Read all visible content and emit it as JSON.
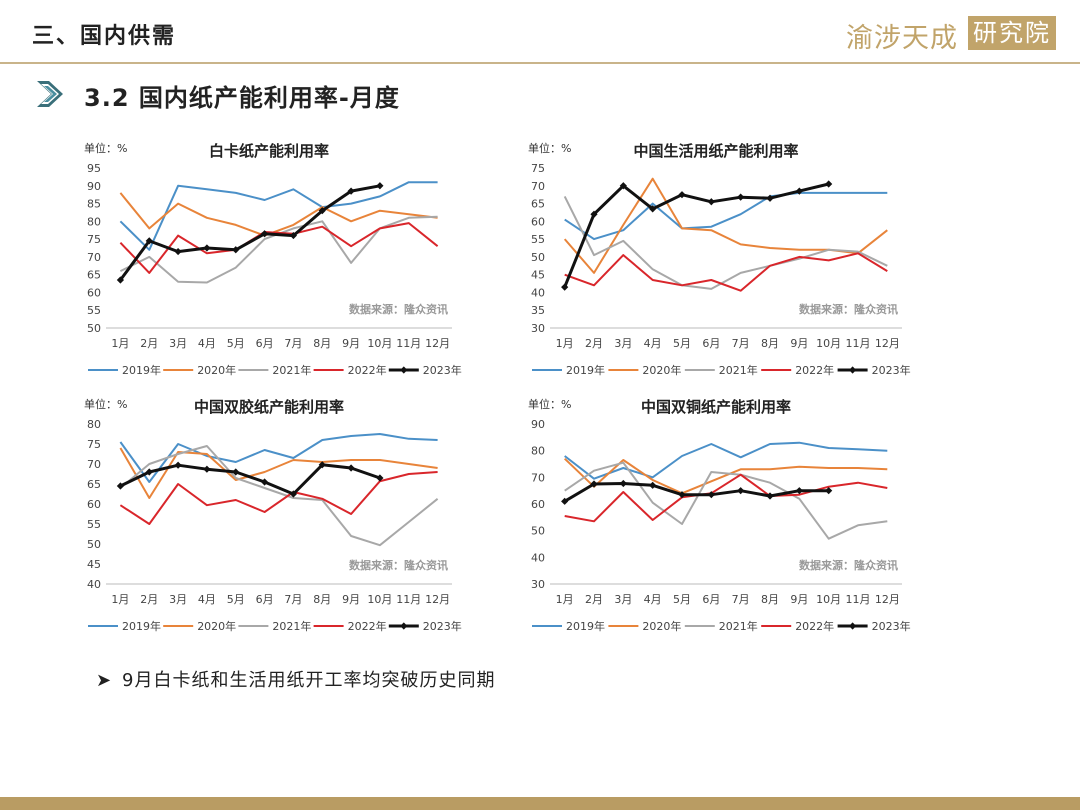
{
  "header": {
    "title": "三、国内供需"
  },
  "logo": {
    "text": "渝涉天成",
    "box_text": "研究院",
    "color": "#c1a46a"
  },
  "section": {
    "title": "3.2 国内纸产能利用率-月度"
  },
  "bullet": {
    "text": "9月白卡纸和生活用纸开工率均突破历史同期"
  },
  "series_colors": {
    "2019年": "#4b90c8",
    "2020年": "#e8843a",
    "2021年": "#a8a8a8",
    "2022年": "#d9262b",
    "2023年": "#111111"
  },
  "chart_data": [
    {
      "type": "line",
      "title": "白卡纸产能利用率",
      "unit": "单位：%",
      "source": "数据来源：隆众资讯",
      "categories": [
        "1月",
        "2月",
        "3月",
        "4月",
        "5月",
        "6月",
        "7月",
        "8月",
        "9月",
        "10月",
        "11月",
        "12月"
      ],
      "ylim": [
        50,
        95
      ],
      "yticks": [
        50,
        55,
        60,
        65,
        70,
        75,
        80,
        85,
        90,
        95
      ],
      "series": [
        {
          "name": "2019年",
          "values": [
            80,
            72,
            90,
            89,
            88,
            86,
            89,
            84,
            85,
            87,
            91,
            91
          ]
        },
        {
          "name": "2020年",
          "values": [
            88,
            78,
            85,
            81,
            79,
            76,
            79,
            84,
            80,
            83,
            82,
            81
          ]
        },
        {
          "name": "2021年",
          "values": [
            66,
            70,
            63,
            62.8,
            67,
            75,
            78,
            80,
            68.3,
            78,
            81,
            81.3
          ]
        },
        {
          "name": "2022年",
          "values": [
            74,
            65.5,
            76,
            71,
            72,
            77,
            76.5,
            78.5,
            73,
            78,
            79.5,
            73
          ]
        },
        {
          "name": "2023年",
          "values": [
            63.5,
            74.5,
            71.5,
            72.5,
            72,
            76.5,
            76,
            83,
            88.5,
            90,
            null,
            null
          ]
        }
      ]
    },
    {
      "type": "line",
      "title": "中国生活用纸产能利用率",
      "unit": "单位：%",
      "source": "数据来源：隆众资讯",
      "categories": [
        "1月",
        "2月",
        "3月",
        "4月",
        "5月",
        "6月",
        "7月",
        "8月",
        "9月",
        "10月",
        "11月",
        "12月"
      ],
      "ylim": [
        30,
        75
      ],
      "yticks": [
        30,
        35,
        40,
        45,
        50,
        55,
        60,
        65,
        70,
        75
      ],
      "series": [
        {
          "name": "2019年",
          "values": [
            60.5,
            55,
            57.5,
            65,
            58,
            58.5,
            62,
            67,
            68,
            68,
            68,
            68
          ]
        },
        {
          "name": "2020年",
          "values": [
            55,
            45.5,
            59,
            72,
            58,
            57.5,
            53.5,
            52.5,
            52,
            52,
            51,
            57.5
          ]
        },
        {
          "name": "2021年",
          "values": [
            67,
            50.5,
            54.5,
            46.5,
            42,
            41,
            45.5,
            47.5,
            49.5,
            52,
            51.5,
            47.5
          ]
        },
        {
          "name": "2022年",
          "values": [
            45,
            42,
            50.5,
            43.5,
            42,
            43.5,
            40.5,
            47.5,
            50,
            49,
            51,
            46
          ]
        },
        {
          "name": "2023年",
          "values": [
            41.5,
            62,
            70,
            63.5,
            67.5,
            65.5,
            66.8,
            66.5,
            68.5,
            70.5,
            null,
            null
          ]
        }
      ]
    },
    {
      "type": "line",
      "title": "中国双胶纸产能利用率",
      "unit": "单位：%",
      "source": "数据来源：隆众资讯",
      "categories": [
        "1月",
        "2月",
        "3月",
        "4月",
        "5月",
        "6月",
        "7月",
        "8月",
        "9月",
        "10月",
        "11月",
        "12月"
      ],
      "ylim": [
        40,
        80
      ],
      "yticks": [
        40,
        45,
        50,
        55,
        60,
        65,
        70,
        75,
        80
      ],
      "series": [
        {
          "name": "2019年",
          "values": [
            75.5,
            65.5,
            75,
            72,
            70.5,
            73.5,
            71.5,
            76,
            77,
            77.5,
            76.3,
            76
          ]
        },
        {
          "name": "2020年",
          "values": [
            74,
            61.5,
            73,
            72.5,
            66,
            68,
            71,
            70.5,
            71,
            71,
            70,
            69
          ]
        },
        {
          "name": "2021年",
          "values": [
            64,
            70,
            72.5,
            74.5,
            66.5,
            64,
            61.5,
            61,
            52,
            49.7,
            55.5,
            61.3
          ]
        },
        {
          "name": "2022年",
          "values": [
            59.7,
            55,
            65,
            59.7,
            61,
            58,
            63,
            61.3,
            57.5,
            65.7,
            67.5,
            68
          ]
        },
        {
          "name": "2023年",
          "values": [
            64.5,
            68,
            69.7,
            68.7,
            68,
            65.5,
            62.5,
            69.8,
            69,
            66.5,
            null,
            null
          ]
        }
      ]
    },
    {
      "type": "line",
      "title": "中国双铜纸产能利用率",
      "unit": "单位：%",
      "source": "数据来源：隆众资讯",
      "categories": [
        "1月",
        "2月",
        "3月",
        "4月",
        "5月",
        "6月",
        "7月",
        "8月",
        "9月",
        "10月",
        "11月",
        "12月"
      ],
      "ylim": [
        30,
        90
      ],
      "yticks": [
        30,
        40,
        50,
        60,
        70,
        80,
        90
      ],
      "series": [
        {
          "name": "2019年",
          "values": [
            78,
            69.5,
            73.5,
            70,
            78,
            82.5,
            77.5,
            82.5,
            83,
            81,
            80.5,
            80
          ]
        },
        {
          "name": "2020年",
          "values": [
            77,
            66.5,
            76.5,
            69,
            64,
            68.5,
            73,
            73,
            74,
            73.5,
            73.5,
            73
          ]
        },
        {
          "name": "2021年",
          "values": [
            65,
            72.5,
            75.5,
            60.5,
            52.5,
            72,
            71,
            68,
            62,
            47,
            52,
            53.5
          ]
        },
        {
          "name": "2022年",
          "values": [
            55.5,
            53.5,
            64.5,
            54,
            62.5,
            64,
            71,
            63,
            63.5,
            66.5,
            68,
            66
          ]
        },
        {
          "name": "2023年",
          "values": [
            61,
            67.5,
            67.7,
            67,
            63.5,
            63.5,
            65,
            63,
            65,
            65,
            null,
            null
          ]
        }
      ]
    }
  ]
}
